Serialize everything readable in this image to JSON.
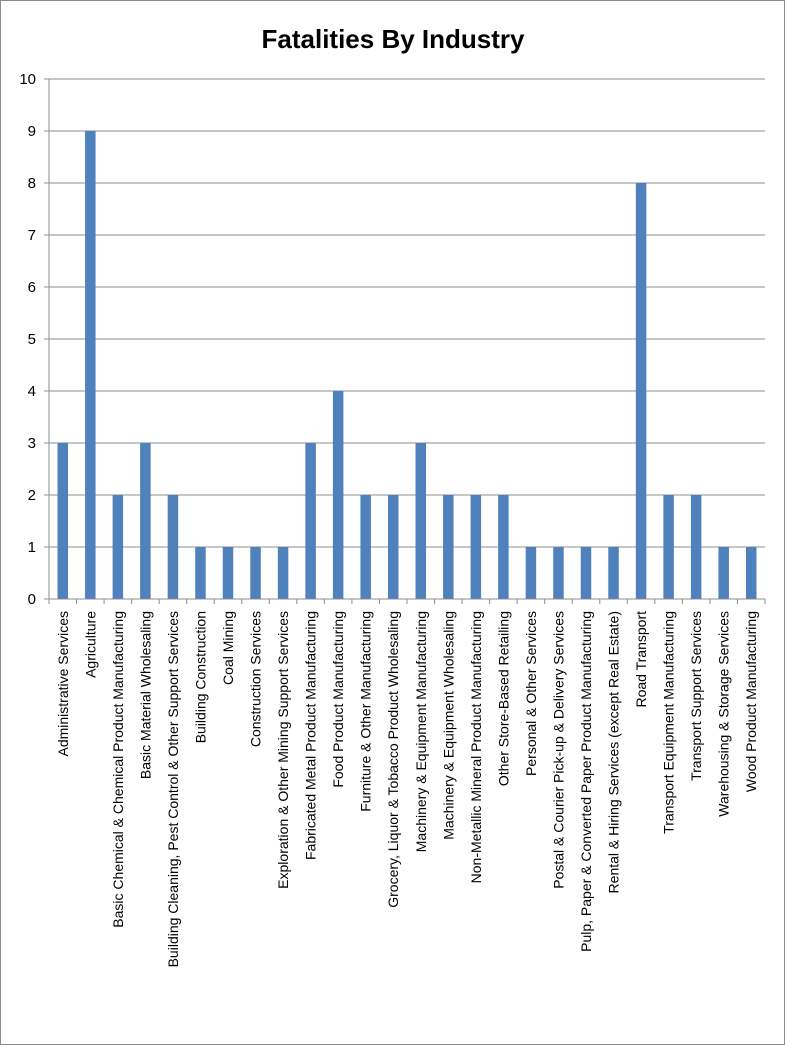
{
  "chart_data": {
    "type": "bar",
    "title": "Fatalities By Industry",
    "xlabel": "",
    "ylabel": "",
    "ylim": [
      0,
      10
    ],
    "yticks": [
      0,
      1,
      2,
      3,
      4,
      5,
      6,
      7,
      8,
      9,
      10
    ],
    "grid": true,
    "legend": "none",
    "bar_color": "#4f81bd",
    "categories": [
      "Administrative Services",
      "Agriculture",
      "Basic Chemical & Chemical Product Manufacturing",
      "Basic Material Wholesaling",
      "Building Cleaning, Pest Control & Other Support Services",
      "Building Construction",
      "Coal Mining",
      "Construction Services",
      "Exploration & Other Mining Support Services",
      "Fabricated Metal Product Manufacturing",
      "Food Product Manufacturing",
      "Furniture & Other Manufacturing",
      "Grocery, Liquor & Tobacco Product Wholesaling",
      "Machinery & Equipment Manufacturing",
      "Machinery & Equipment Wholesaling",
      "Non-Metallic Mineral Product Manufacturing",
      "Other Store-Based Retailing",
      "Personal & Other Services",
      "Postal & Courier Pick-up & Delivery Services",
      "Pulp, Paper & Converted Paper Product Manufacturing",
      "Rental & Hiring Services (except Real Estate)",
      "Road Transport",
      "Transport Equipment Manufacturing",
      "Transport Support Services",
      "Warehousing & Storage Services",
      "Wood Product Manufacturing"
    ],
    "values": [
      3,
      9,
      2,
      3,
      2,
      1,
      1,
      1,
      1,
      3,
      4,
      2,
      2,
      3,
      2,
      2,
      2,
      1,
      1,
      1,
      1,
      8,
      2,
      2,
      1,
      1
    ]
  }
}
